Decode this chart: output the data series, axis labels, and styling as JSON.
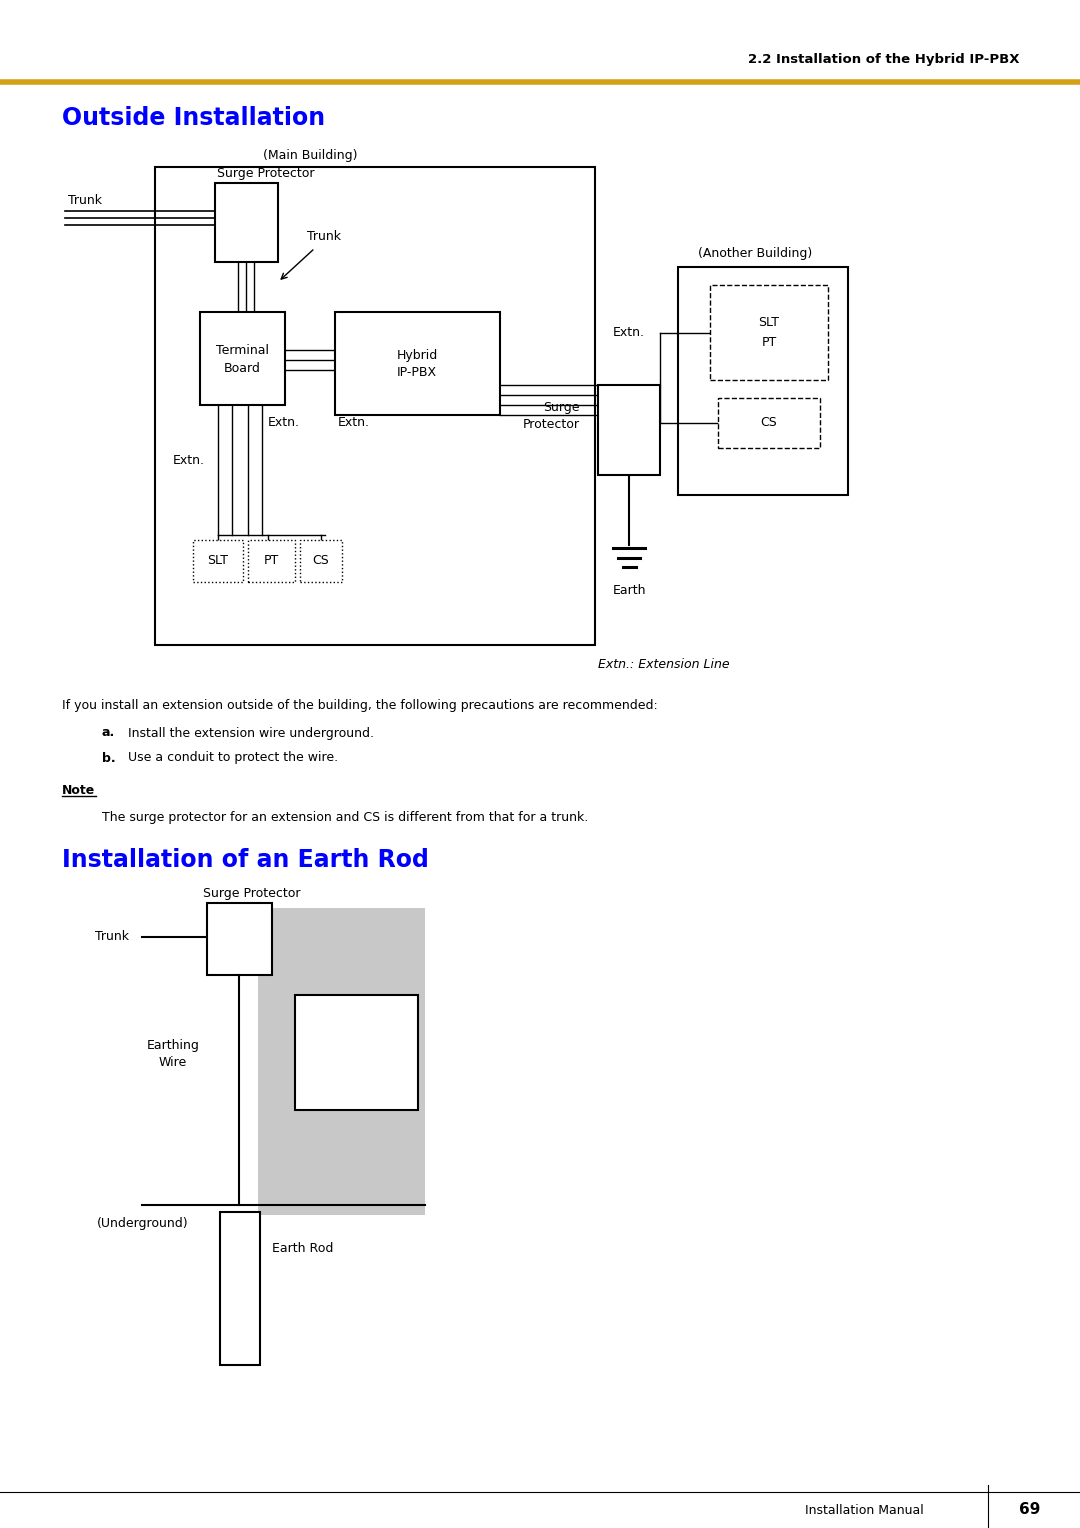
{
  "page_header": "2.2 Installation of the Hybrid IP-PBX",
  "header_line_color": "#D4A017",
  "section1_title": "Outside Installation",
  "section2_title": "Installation of an Earth Rod",
  "title_color": "#0000FF",
  "body_text_color": "#000000",
  "background_color": "#FFFFFF",
  "footer_text": "Installation Manual",
  "footer_page": "69",
  "note_text": "The surge protector for an extension and CS is different from that for a trunk.",
  "body_paragraph": "If you install an extension outside of the building, the following precautions are recommended:",
  "bullet_a": "Install the extension wire underground.",
  "bullet_b": "Use a conduit to protect the wire.",
  "extn_label": "Extn.: Extension Line"
}
